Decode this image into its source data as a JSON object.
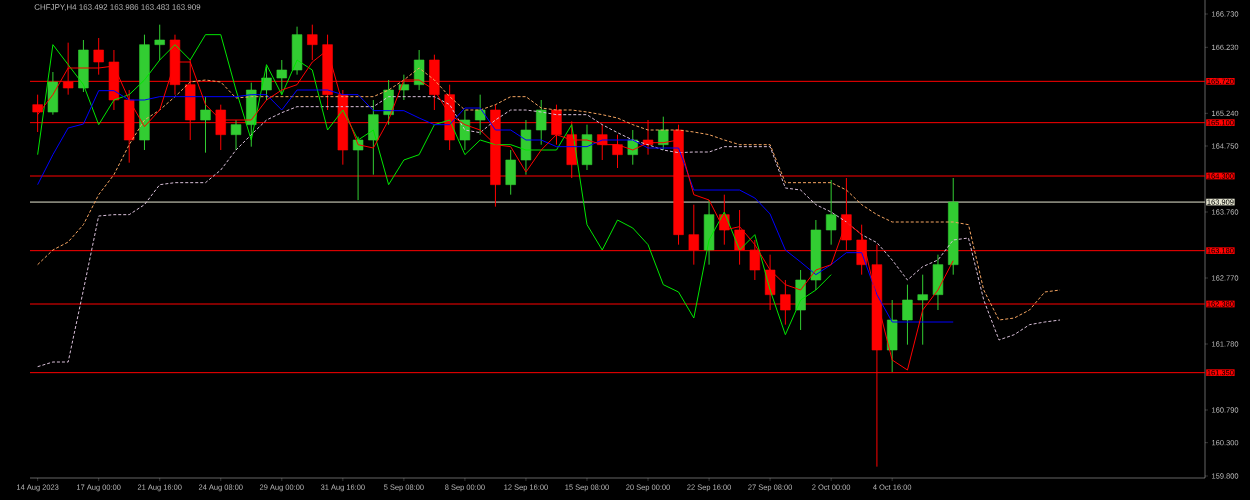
{
  "chart_data": {
    "type": "candlestick",
    "title": "CHFJPY,H4  163.492 163.986 163.483 163.909",
    "categories": [
      "14 Aug 2023",
      null,
      null,
      null,
      "17 Aug 00:00",
      null,
      null,
      null,
      "21 Aug 16:00",
      null,
      null,
      null,
      "24 Aug 08:00",
      null,
      null,
      null,
      "29 Aug 00:00",
      null,
      null,
      null,
      "31 Aug 16:00",
      null,
      null,
      null,
      "5 Sep 08:00",
      null,
      null,
      null,
      "8 Sep 00:00",
      null,
      null,
      null,
      "12 Sep 16:00",
      null,
      null,
      null,
      "15 Sep 08:00",
      null,
      null,
      null,
      "20 Sep 00:00",
      null,
      null,
      null,
      "22 Sep 16:00",
      null,
      null,
      null,
      "27 Sep 08:00",
      null,
      null,
      null,
      "2 Oct 00:00",
      null,
      null,
      null,
      "4 Oct 16:00",
      null,
      null,
      null,
      null,
      null,
      null,
      null,
      null,
      null,
      null,
      null,
      null,
      null,
      null,
      null,
      null,
      null,
      null,
      null,
      null
    ],
    "ohlc": [
      [
        165.37,
        165.52,
        164.96,
        165.26
      ],
      [
        165.26,
        165.86,
        165.22,
        165.71
      ],
      [
        165.71,
        166.3,
        165.52,
        165.62
      ],
      [
        165.62,
        166.34,
        165.56,
        166.19
      ],
      [
        166.19,
        166.37,
        165.82,
        166.01
      ],
      [
        166.01,
        166.19,
        165.29,
        165.44
      ],
      [
        165.44,
        165.59,
        164.5,
        164.84
      ],
      [
        164.84,
        166.42,
        164.69,
        166.27
      ],
      [
        166.27,
        166.57,
        166.04,
        166.34
      ],
      [
        166.34,
        166.42,
        165.52,
        165.67
      ],
      [
        165.67,
        166.04,
        164.84,
        165.14
      ],
      [
        165.14,
        165.49,
        164.65,
        165.29
      ],
      [
        165.29,
        165.37,
        164.69,
        164.92
      ],
      [
        164.92,
        165.14,
        164.69,
        165.07
      ],
      [
        165.07,
        165.7,
        164.74,
        165.59
      ],
      [
        165.59,
        165.94,
        165.44,
        165.77
      ],
      [
        165.77,
        166.04,
        165.52,
        165.89
      ],
      [
        165.89,
        166.54,
        165.82,
        166.42
      ],
      [
        166.42,
        166.57,
        166.04,
        166.27
      ],
      [
        166.27,
        166.42,
        165.29,
        165.52
      ],
      [
        165.52,
        165.59,
        164.47,
        164.69
      ],
      [
        164.69,
        164.89,
        163.94,
        164.84
      ],
      [
        164.84,
        165.44,
        164.32,
        165.22
      ],
      [
        165.22,
        165.74,
        165.07,
        165.59
      ],
      [
        165.59,
        165.82,
        165.44,
        165.67
      ],
      [
        165.67,
        166.19,
        165.59,
        166.04
      ],
      [
        166.04,
        166.12,
        165.29,
        165.52
      ],
      [
        165.52,
        165.67,
        164.69,
        164.84
      ],
      [
        164.84,
        165.29,
        164.69,
        165.14
      ],
      [
        165.14,
        165.52,
        164.92,
        165.29
      ],
      [
        165.29,
        165.37,
        163.84,
        164.17
      ],
      [
        164.17,
        164.69,
        164.02,
        164.54
      ],
      [
        164.54,
        165.14,
        164.32,
        164.99
      ],
      [
        164.99,
        165.44,
        164.77,
        165.29
      ],
      [
        165.29,
        165.37,
        164.77,
        164.92
      ],
      [
        164.92,
        165.12,
        164.27,
        164.47
      ],
      [
        164.47,
        165.07,
        164.39,
        164.92
      ],
      [
        164.92,
        165.07,
        164.54,
        164.77
      ],
      [
        164.77,
        164.92,
        164.42,
        164.62
      ],
      [
        164.62,
        164.99,
        164.47,
        164.84
      ],
      [
        164.84,
        165.14,
        164.62,
        164.77
      ],
      [
        164.77,
        165.19,
        164.69,
        164.99
      ],
      [
        164.99,
        165.07,
        163.27,
        163.42
      ],
      [
        163.42,
        163.87,
        162.97,
        163.19
      ],
      [
        163.19,
        163.94,
        162.97,
        163.72
      ],
      [
        163.72,
        164.02,
        163.27,
        163.49
      ],
      [
        163.49,
        163.79,
        162.97,
        163.19
      ],
      [
        163.19,
        163.34,
        162.74,
        162.89
      ],
      [
        162.89,
        163.12,
        162.29,
        162.52
      ],
      [
        162.52,
        162.74,
        162.07,
        162.29
      ],
      [
        162.29,
        162.89,
        161.99,
        162.74
      ],
      [
        162.74,
        163.64,
        162.59,
        163.49
      ],
      [
        163.49,
        164.24,
        163.27,
        163.72
      ],
      [
        163.72,
        164.27,
        163.19,
        163.34
      ],
      [
        163.34,
        163.57,
        162.82,
        162.97
      ],
      [
        162.97,
        163.27,
        159.94,
        161.69
      ],
      [
        161.69,
        162.44,
        161.36,
        162.14
      ],
      [
        162.14,
        162.67,
        161.77,
        162.44
      ],
      [
        162.44,
        162.82,
        161.77,
        162.52
      ],
      [
        162.52,
        163.12,
        162.29,
        162.97
      ],
      [
        162.97,
        164.27,
        162.82,
        163.91
      ],
      null,
      null,
      null,
      null,
      null,
      null,
      null,
      null,
      null,
      null,
      null,
      null,
      null,
      null,
      null,
      null
    ],
    "colors": [
      "#ff0000",
      "#32cd32",
      "#ff0000",
      "#32cd32",
      "#ff0000",
      "#ff0000",
      "#ff0000",
      "#32cd32",
      "#32cd32",
      "#ff0000",
      "#ff0000",
      "#32cd32",
      "#ff0000",
      "#32cd32",
      "#32cd32",
      "#32cd32",
      "#32cd32",
      "#32cd32",
      "#ff0000",
      "#ff0000",
      "#ff0000",
      "#32cd32",
      "#32cd32",
      "#32cd32",
      "#32cd32",
      "#32cd32",
      "#ff0000",
      "#ff0000",
      "#32cd32",
      "#32cd32",
      "#ff0000",
      "#32cd32",
      "#32cd32",
      "#32cd32",
      "#ff0000",
      "#ff0000",
      "#32cd32",
      "#ff0000",
      "#ff0000",
      "#32cd32",
      "#ff0000",
      "#32cd32",
      "#ff0000",
      "#ff0000",
      "#32cd32",
      "#ff0000",
      "#ff0000",
      "#ff0000",
      "#ff0000",
      "#ff0000",
      "#32cd32",
      "#32cd32",
      "#32cd32",
      "#ff0000",
      "#ff0000",
      "#ff0000",
      "#32cd32",
      "#32cd32",
      "#32cd32",
      "#32cd32",
      "#32cd32",
      null,
      null,
      null,
      null,
      null,
      null,
      null,
      null,
      null,
      null,
      null,
      null,
      null,
      null,
      null,
      null
    ],
    "series": [
      {
        "type": "line",
        "color": "#f4a460",
        "line_style": "dashed",
        "values": [
          162.97,
          163.19,
          163.31,
          163.57,
          164.02,
          164.32,
          164.77,
          165.14,
          165.29,
          165.49,
          165.71,
          165.74,
          165.71,
          165.47,
          165.49,
          165.49,
          165.49,
          165.49,
          165.49,
          165.49,
          165.49,
          165.49,
          165.49,
          165.59,
          165.74,
          165.92,
          165.74,
          165.49,
          165.29,
          165.29,
          165.37,
          165.49,
          165.49,
          165.32,
          165.29,
          165.29,
          165.26,
          165.22,
          165.17,
          165.07,
          164.99,
          164.99,
          164.99,
          164.96,
          164.92,
          164.84,
          164.77,
          164.77,
          164.77,
          164.2,
          164.2,
          164.2,
          164.2,
          164.09,
          163.87,
          163.72,
          163.61,
          163.61,
          163.61,
          163.61,
          163.61,
          163.57,
          162.59,
          162.14,
          162.17,
          162.29,
          162.56,
          162.59,
          null,
          null,
          null,
          null,
          null,
          null,
          null,
          null,
          null
        ]
      },
      {
        "type": "line",
        "color": "#d8bfd8",
        "line_style": "dashed",
        "values": [
          161.44,
          161.51,
          161.51,
          162.59,
          163.7,
          163.72,
          163.72,
          163.87,
          164.17,
          164.2,
          164.2,
          164.2,
          164.39,
          164.69,
          164.92,
          165.14,
          165.25,
          165.34,
          165.34,
          165.34,
          165.34,
          165.34,
          165.34,
          165.49,
          165.49,
          165.49,
          165.49,
          165.37,
          164.99,
          164.95,
          165.14,
          165.29,
          165.29,
          165.26,
          165.22,
          165.22,
          165.22,
          165.07,
          164.95,
          164.84,
          164.77,
          164.69,
          164.65,
          164.66,
          164.66,
          164.74,
          164.74,
          164.74,
          164.74,
          164.12,
          164.09,
          163.87,
          163.76,
          163.61,
          163.42,
          163.3,
          163.04,
          162.74,
          162.94,
          163.04,
          163.34,
          163.37,
          162.44,
          161.84,
          161.92,
          162.07,
          162.11,
          162.14,
          null,
          null,
          null,
          null,
          null,
          null,
          null,
          null,
          null
        ]
      },
      {
        "type": "line",
        "color": "#00e600",
        "values": [
          164.62,
          166.27,
          165.97,
          165.67,
          165.07,
          165.44,
          165.52,
          165.74,
          166.04,
          166.27,
          166.04,
          166.42,
          166.42,
          165.59,
          164.84,
          165.97,
          165.52,
          166.04,
          165.89,
          164.99,
          165.29,
          164.84,
          164.99,
          164.17,
          164.54,
          164.62,
          165.07,
          165.14,
          164.62,
          164.84,
          164.77,
          164.77,
          164.69,
          164.69,
          164.69,
          165.07,
          163.57,
          163.19,
          163.64,
          163.52,
          163.27,
          162.67,
          162.56,
          162.17,
          163.34,
          163.76,
          163.19,
          163.42,
          162.59,
          161.92,
          162.44,
          162.59,
          162.82,
          null,
          null,
          null,
          null,
          null,
          null,
          null,
          null,
          null,
          null,
          null,
          null,
          null,
          null,
          null,
          null,
          null,
          null,
          null,
          null,
          null,
          null,
          null,
          null
        ]
      },
      {
        "type": "line",
        "color": "#0000ff",
        "values": [
          164.17,
          164.62,
          165.02,
          165.08,
          165.58,
          165.58,
          165.44,
          165.44,
          165.49,
          165.49,
          165.49,
          165.49,
          165.49,
          165.49,
          165.52,
          165.52,
          165.29,
          165.59,
          165.59,
          165.59,
          165.52,
          165.52,
          165.28,
          165.28,
          165.28,
          165.17,
          165.07,
          165.07,
          165.32,
          165.32,
          164.99,
          164.99,
          164.84,
          164.84,
          164.74,
          164.74,
          164.74,
          164.84,
          164.84,
          164.84,
          164.72,
          164.72,
          164.72,
          164.09,
          164.09,
          164.09,
          164.09,
          163.97,
          163.73,
          163.19,
          163.01,
          162.82,
          162.97,
          163.15,
          163.15,
          162.52,
          162.11,
          162.11,
          162.11,
          162.11,
          162.11,
          null,
          null,
          null,
          null,
          null,
          null,
          null,
          null,
          null,
          null,
          null,
          null,
          null,
          null,
          null,
          null
        ]
      },
      {
        "type": "line",
        "color": "#ff0000",
        "values": [
          165.22,
          165.52,
          165.92,
          165.92,
          165.92,
          165.95,
          165.44,
          165.04,
          165.29,
          166.01,
          166.01,
          165.37,
          165.14,
          165.14,
          165.14,
          165.44,
          165.59,
          165.67,
          166.01,
          166.19,
          165.37,
          164.77,
          164.72,
          165.14,
          165.74,
          165.74,
          165.59,
          165.22,
          165.07,
          164.99,
          164.77,
          164.74,
          164.36,
          164.69,
          164.92,
          164.84,
          164.84,
          164.77,
          164.77,
          164.69,
          164.8,
          164.8,
          164.84,
          164.02,
          163.94,
          163.49,
          163.54,
          163.27,
          162.89,
          162.67,
          162.59,
          162.89,
          162.97,
          163.61,
          163.42,
          162.44,
          161.54,
          161.39,
          162.29,
          162.59,
          163.03,
          null,
          null,
          null,
          null,
          null,
          null,
          null,
          null,
          null,
          null,
          null,
          null,
          null,
          null,
          null,
          null
        ]
      }
    ],
    "ref_lines": [
      {
        "axis": "y",
        "value": 165.72,
        "label": "165.720",
        "color": "#ff0000"
      },
      {
        "axis": "y",
        "value": 165.1,
        "label": "165.100",
        "color": "#ff0000"
      },
      {
        "axis": "y",
        "value": 164.3,
        "label": "164.300",
        "color": "#ff0000"
      },
      {
        "axis": "y",
        "value": 163.909,
        "label": "163.909",
        "color": "#e6e6d2"
      },
      {
        "axis": "y",
        "value": 163.18,
        "label": "163.180",
        "color": "#ff0000"
      },
      {
        "axis": "y",
        "value": 162.38,
        "label": "162.380",
        "color": "#ff0000"
      },
      {
        "axis": "y",
        "value": 161.35,
        "label": "161.350",
        "color": "#ff0000"
      }
    ],
    "ylim": [
      159.77,
      166.94
    ],
    "yticks": [
      {
        "value": 166.73,
        "label": "166.730"
      },
      {
        "value": 166.23,
        "label": "166.230"
      },
      {
        "value": 165.24,
        "label": "165.240"
      },
      {
        "value": 164.75,
        "label": "164.750"
      },
      {
        "value": 163.76,
        "label": "163.760"
      },
      {
        "value": 162.77,
        "label": "162.770"
      },
      {
        "value": 161.78,
        "label": "161.780"
      },
      {
        "value": 160.79,
        "label": "160.790"
      },
      {
        "value": 160.3,
        "label": "160.300"
      },
      {
        "value": 159.8,
        "label": "159.800"
      }
    ]
  }
}
